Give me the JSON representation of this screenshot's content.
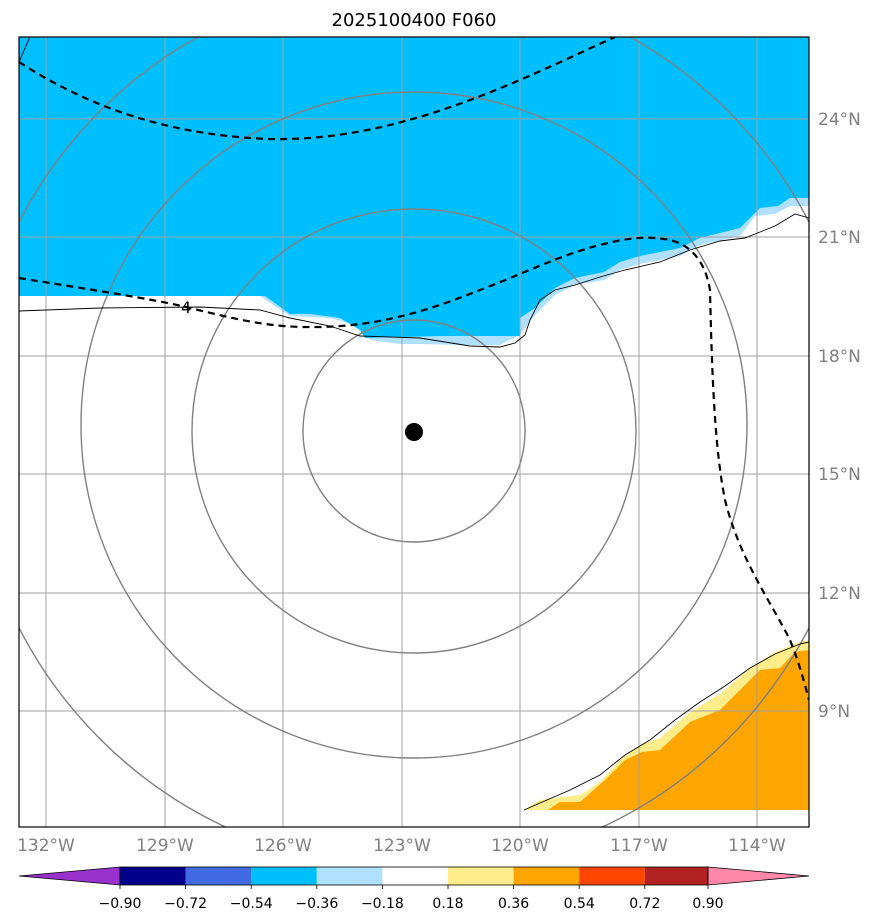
{
  "title": "2025100400 F060",
  "lat_labels": [
    "24°N",
    "21°N",
    "18°N",
    "15°N",
    "12°N",
    "9°N"
  ],
  "lon_labels": [
    "132°W",
    "129°W",
    "126°W",
    "123°W",
    "120°W",
    "117°W",
    "114°W"
  ],
  "storm_center": {
    "lon": -122.7,
    "lat": 16.1
  },
  "contour_label": "4",
  "colorbar": {
    "tick_labels": [
      "−0.90",
      "−0.72",
      "−0.54",
      "−0.36",
      "−0.18",
      "0.18",
      "0.36",
      "0.54",
      "0.72",
      "0.90"
    ],
    "colors": [
      "#9932cc",
      "#00008b",
      "#4169e1",
      "#00bfff",
      "#b0e0ff",
      "#ffffff",
      "#ffec8b",
      "#ffa500",
      "#ff4500",
      "#b22222",
      "#ff88aa"
    ]
  },
  "fill_colors": {
    "negative": "#00bfff",
    "negative_light": "#b0e0ff",
    "positive": "#ffa500",
    "positive_light": "#ffec8b"
  }
}
